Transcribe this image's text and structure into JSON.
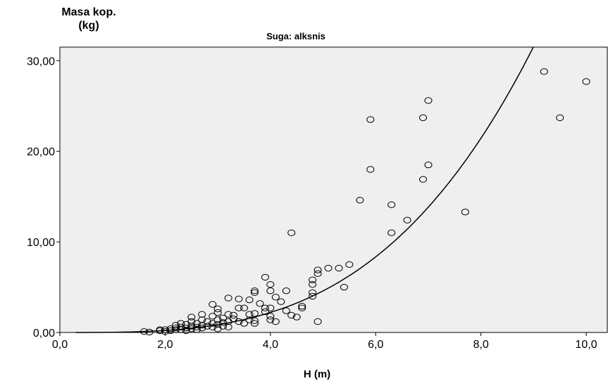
{
  "chart_data": {
    "type": "scatter",
    "title": "Suga: alksnis",
    "ylabel_line1": "Masa kop.",
    "ylabel_line2": "(kg)",
    "xlabel": "H (m)",
    "xlim": [
      0,
      10.4
    ],
    "ylim": [
      0,
      31.5
    ],
    "x_ticks": [
      0,
      2,
      4,
      6,
      8,
      10
    ],
    "x_tick_labels": [
      "0,0",
      "2,0",
      "4,0",
      "6,0",
      "8,0",
      "10,0"
    ],
    "y_ticks": [
      0,
      10,
      20,
      30
    ],
    "y_tick_labels": [
      "0,00",
      "10,00",
      "20,00",
      "30,00"
    ],
    "grid": false,
    "background": "#efefef",
    "marker": "open circle",
    "fit_curve": {
      "type": "power",
      "a": 0.0234,
      "b": 3.28
    },
    "points": [
      [
        1.6,
        0.1
      ],
      [
        1.7,
        0.05
      ],
      [
        1.9,
        0.3
      ],
      [
        1.9,
        0.2
      ],
      [
        2.0,
        0.3
      ],
      [
        2.0,
        0.1
      ],
      [
        2.1,
        0.4
      ],
      [
        2.1,
        0.2
      ],
      [
        2.2,
        0.5
      ],
      [
        2.2,
        0.3
      ],
      [
        2.2,
        0.8
      ],
      [
        2.3,
        0.6
      ],
      [
        2.3,
        0.3
      ],
      [
        2.3,
        1.0
      ],
      [
        2.4,
        0.9
      ],
      [
        2.4,
        0.5
      ],
      [
        2.4,
        0.2
      ],
      [
        2.5,
        1.2
      ],
      [
        2.5,
        0.7
      ],
      [
        2.5,
        0.4
      ],
      [
        2.5,
        1.7
      ],
      [
        2.6,
        1.0
      ],
      [
        2.6,
        0.6
      ],
      [
        2.6,
        0.3
      ],
      [
        2.7,
        2.0
      ],
      [
        2.7,
        1.4
      ],
      [
        2.7,
        0.8
      ],
      [
        2.7,
        0.5
      ],
      [
        2.8,
        1.2
      ],
      [
        2.8,
        0.7
      ],
      [
        2.9,
        3.1
      ],
      [
        2.9,
        1.8
      ],
      [
        2.9,
        1.0
      ],
      [
        2.9,
        0.6
      ],
      [
        3.0,
        2.6
      ],
      [
        3.0,
        2.2
      ],
      [
        3.0,
        1.4
      ],
      [
        3.0,
        0.9
      ],
      [
        3.0,
        0.4
      ],
      [
        3.1,
        1.6
      ],
      [
        3.1,
        1.1
      ],
      [
        3.1,
        0.7
      ],
      [
        3.2,
        3.8
      ],
      [
        3.2,
        2.0
      ],
      [
        3.2,
        1.2
      ],
      [
        3.2,
        0.6
      ],
      [
        3.3,
        1.9
      ],
      [
        3.3,
        1.5
      ],
      [
        3.4,
        3.7
      ],
      [
        3.4,
        2.7
      ],
      [
        3.4,
        1.2
      ],
      [
        3.5,
        2.7
      ],
      [
        3.5,
        1.0
      ],
      [
        3.6,
        3.6
      ],
      [
        3.6,
        2.0
      ],
      [
        3.6,
        1.4
      ],
      [
        3.7,
        4.6
      ],
      [
        3.7,
        4.4
      ],
      [
        3.7,
        2.1
      ],
      [
        3.7,
        1.3
      ],
      [
        3.7,
        1.0
      ],
      [
        3.8,
        3.2
      ],
      [
        3.9,
        6.1
      ],
      [
        3.9,
        2.7
      ],
      [
        3.9,
        2.3
      ],
      [
        4.0,
        5.3
      ],
      [
        4.0,
        4.6
      ],
      [
        4.0,
        2.7
      ],
      [
        4.0,
        1.8
      ],
      [
        4.0,
        1.4
      ],
      [
        4.1,
        3.9
      ],
      [
        4.1,
        1.2
      ],
      [
        4.2,
        3.4
      ],
      [
        4.3,
        4.6
      ],
      [
        4.3,
        2.4
      ],
      [
        4.4,
        11.0
      ],
      [
        4.4,
        1.9
      ],
      [
        4.5,
        1.7
      ],
      [
        4.6,
        2.9
      ],
      [
        4.6,
        2.7
      ],
      [
        4.8,
        5.8
      ],
      [
        4.8,
        5.3
      ],
      [
        4.8,
        4.4
      ],
      [
        4.8,
        4.0
      ],
      [
        4.9,
        6.9
      ],
      [
        4.9,
        6.5
      ],
      [
        4.9,
        1.2
      ],
      [
        5.1,
        7.1
      ],
      [
        5.3,
        7.1
      ],
      [
        5.4,
        5.0
      ],
      [
        5.5,
        7.5
      ],
      [
        5.7,
        14.6
      ],
      [
        5.9,
        23.5
      ],
      [
        5.9,
        18.0
      ],
      [
        6.3,
        14.1
      ],
      [
        6.3,
        11.0
      ],
      [
        6.6,
        12.4
      ],
      [
        6.9,
        23.7
      ],
      [
        6.9,
        16.9
      ],
      [
        7.0,
        25.6
      ],
      [
        7.0,
        18.5
      ],
      [
        7.7,
        13.3
      ],
      [
        9.2,
        28.8
      ],
      [
        9.5,
        23.7
      ],
      [
        10.0,
        27.7
      ]
    ]
  }
}
